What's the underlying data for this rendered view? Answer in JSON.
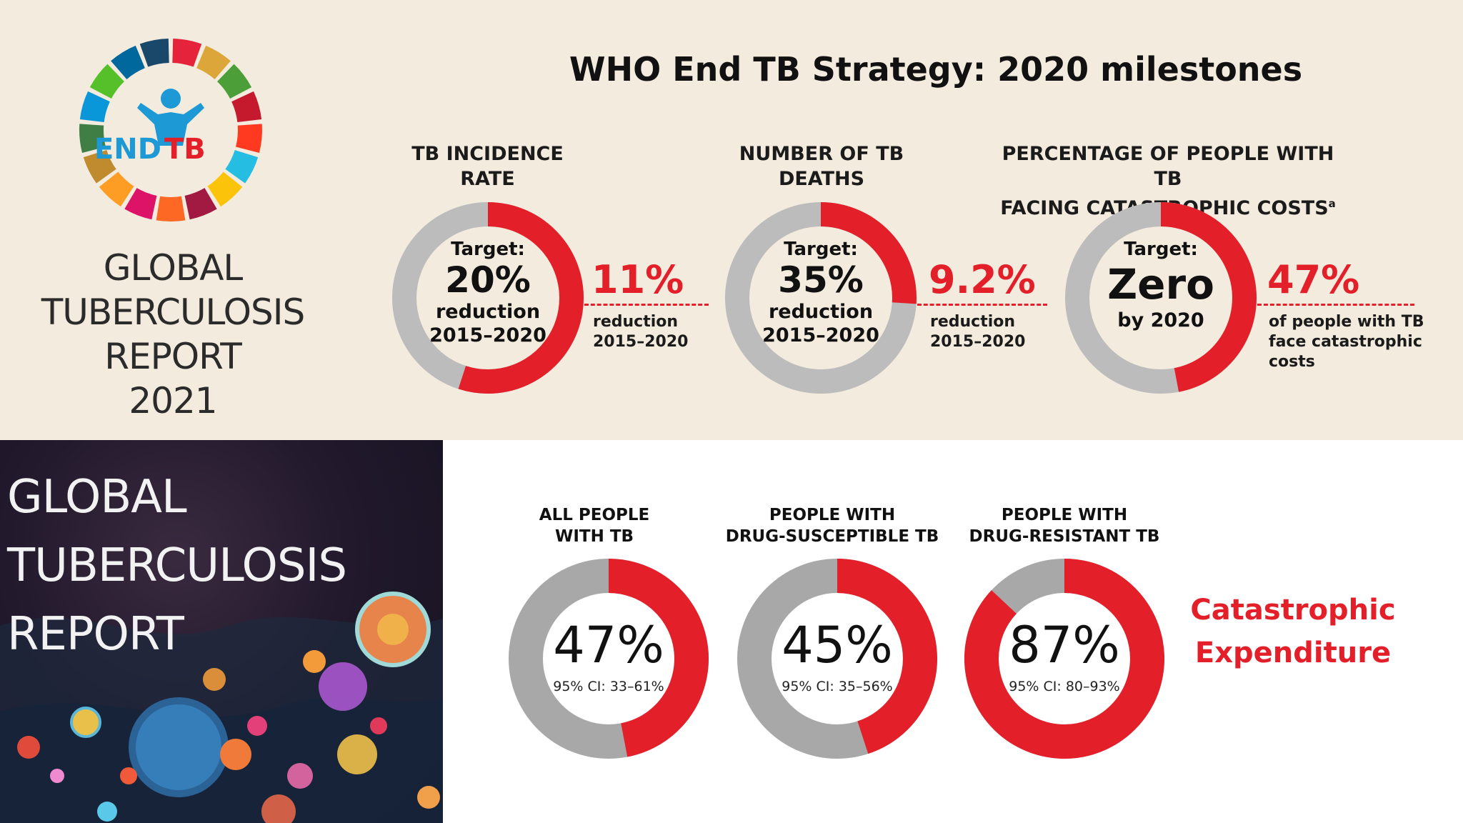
{
  "colors": {
    "accent_red": "#e3202a",
    "ring_gray": "#bcbcbc",
    "ring_gray_dark": "#a8a8a8",
    "panel_beige": "#f3ebdd"
  },
  "logo": {
    "text_end": "END",
    "text_tb": "TB"
  },
  "report": {
    "line1": "GLOBAL",
    "line2": "TUBERCULOSIS",
    "line3": "REPORT",
    "year": "2021"
  },
  "cover": {
    "line1": "GLOBAL",
    "line2": "TUBERCULOSIS",
    "line3": "REPORT"
  },
  "chart_data": [
    {
      "type": "pie",
      "title": "WHO End TB Strategy: 2020 milestones",
      "items": [
        {
          "title": "TB INCIDENCE RATE",
          "title_lines": [
            "TB INCIDENCE",
            "RATE"
          ],
          "target_label": "Target:",
          "target_value": "20%",
          "target_lines": [
            "reduction",
            "2015–2020"
          ],
          "achieved": "11%",
          "achieved_note": [
            "reduction",
            "2015–2020"
          ],
          "fraction": 0.55
        },
        {
          "title": "NUMBER OF TB DEATHS",
          "title_lines": [
            "NUMBER OF TB",
            "DEATHS"
          ],
          "target_label": "Target:",
          "target_value": "35%",
          "target_lines": [
            "reduction",
            "2015–2020"
          ],
          "achieved": "9.2%",
          "achieved_note": [
            "reduction",
            "2015–2020"
          ],
          "fraction": 0.26
        },
        {
          "title": "PERCENTAGE OF PEOPLE WITH TB FACING CATASTROPHIC COSTS",
          "title_lines": [
            "PERCENTAGE OF PEOPLE WITH TB",
            "FACING CATASTROPHIC COSTS"
          ],
          "title_sup": "a",
          "target_label": "Target:",
          "target_value": "Zero",
          "target_lines": [
            "by 2020"
          ],
          "achieved": "47%",
          "achieved_note": [
            "of people with TB",
            "face catastrophic",
            "costs"
          ],
          "fraction": 0.47
        }
      ]
    },
    {
      "type": "pie",
      "title": "Catastrophic Expenditure",
      "title_lines": [
        "Catastrophic",
        "Expenditure"
      ],
      "items": [
        {
          "title_lines": [
            "ALL PEOPLE",
            "WITH TB"
          ],
          "value": 47,
          "label": "47%",
          "ci": "95% CI: 33–61%"
        },
        {
          "title_lines": [
            "PEOPLE WITH",
            "DRUG-SUSCEPTIBLE TB"
          ],
          "value": 45,
          "label": "45%",
          "ci": "95% CI: 35–56%"
        },
        {
          "title_lines": [
            "PEOPLE WITH",
            "DRUG-RESISTANT TB"
          ],
          "value": 87,
          "label": "87%",
          "ci": "95% CI: 80–93%"
        }
      ]
    }
  ]
}
